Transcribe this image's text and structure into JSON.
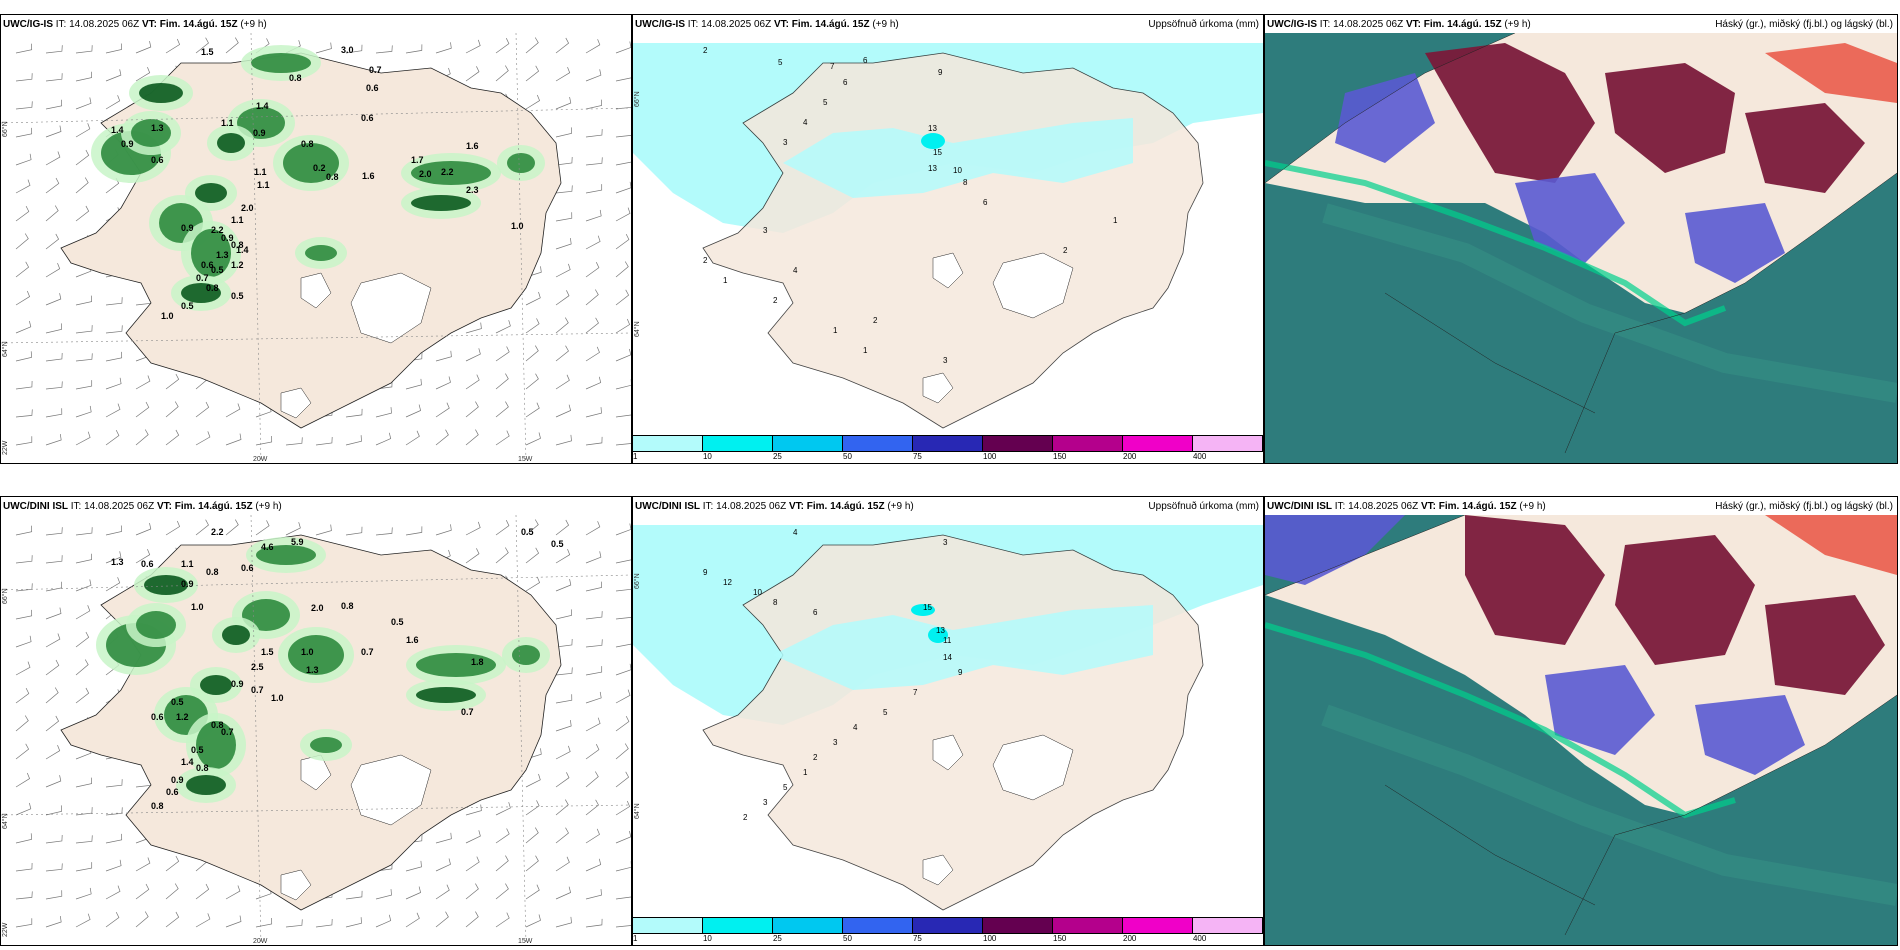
{
  "panels": {
    "top_left": {
      "model": "UWC/IG-IS",
      "it_label": "IT:",
      "it_value": "14.08.2025 06Z",
      "vt_label": "VT:",
      "vt_value": "Fim. 14.ágú. 15Z",
      "lead": "(+9 h)",
      "axis_labels": [
        "66°N",
        "64°N",
        "22W",
        "20W",
        "15W"
      ],
      "values": [
        "1.5",
        "3.0",
        "0.7",
        "0.6",
        "0.8",
        "1.4",
        "0.6",
        "0.9",
        "1.1",
        "1.3",
        "1.4",
        "0.9",
        "0.6",
        "0.8",
        "1.6",
        "0.2",
        "0.8",
        "1.1",
        "1.6",
        "1.7",
        "2.0",
        "2.2",
        "2.3",
        "1.1",
        "2.0",
        "1.1",
        "2.2",
        "0.9",
        "0.8",
        "0.9",
        "1.0",
        "0.6",
        "0.5",
        "0.7",
        "0.8",
        "0.5",
        "0.5",
        "1.0",
        "1.4",
        "1.3",
        "1.2"
      ]
    },
    "top_mid": {
      "model": "UWC/IG-IS",
      "it_label": "IT:",
      "it_value": "14.08.2025 06Z",
      "vt_label": "VT:",
      "vt_value": "Fim. 14.ágú. 15Z",
      "lead": "(+9 h)",
      "field": "Uppsöfnuð úrkoma (mm)",
      "axis_labels": [
        "66°N",
        "64°N"
      ],
      "values": [
        "2",
        "5",
        "7",
        "6",
        "9",
        "6",
        "5",
        "4",
        "3",
        "13",
        "15",
        "13",
        "10",
        "8",
        "6",
        "2",
        "1",
        "3",
        "4",
        "2",
        "1",
        "1",
        "2",
        "3",
        "2",
        "1"
      ]
    },
    "top_right": {
      "model": "UWC/IG-IS",
      "it_label": "IT:",
      "it_value": "14.08.2025 06Z",
      "vt_label": "VT:",
      "vt_value": "Fim. 14.ágú. 15Z",
      "lead": "(+9 h)",
      "field": "Háský (gr.), miðský (fj.bl.) og lágský (bl.)"
    },
    "bottom_left": {
      "model": "UWC/DINI ISL",
      "it_label": "IT:",
      "it_value": "14.08.2025 06Z",
      "vt_label": "VT:",
      "vt_value": "Fim. 14.ágú. 15Z",
      "lead": "(+9 h)",
      "axis_labels": [
        "66°N",
        "64°N",
        "22W",
        "20W",
        "15W"
      ],
      "values": [
        "2.2",
        "4.6",
        "5.9",
        "0.5",
        "0.5",
        "1.3",
        "0.6",
        "1.1",
        "0.8",
        "0.6",
        "0.9",
        "1.0",
        "2.0",
        "0.8",
        "0.5",
        "1.6",
        "0.7",
        "1.8",
        "1.5",
        "1.0",
        "2.5",
        "1.3",
        "0.9",
        "0.7",
        "1.0",
        "0.5",
        "0.6",
        "1.2",
        "0.8",
        "0.7",
        "0.5",
        "1.4",
        "0.8",
        "0.9",
        "0.6",
        "0.8",
        "0.7"
      ]
    },
    "bottom_mid": {
      "model": "UWC/DINI ISL",
      "it_label": "IT:",
      "it_value": "14.08.2025 06Z",
      "vt_label": "VT:",
      "vt_value": "Fim. 14.ágú. 15Z",
      "lead": "(+9 h)",
      "field": "Uppsöfnuð úrkoma (mm)",
      "axis_labels": [
        "66°N",
        "64°N"
      ],
      "values": [
        "4",
        "3",
        "9",
        "12",
        "10",
        "8",
        "6",
        "15",
        "13",
        "11",
        "14",
        "9",
        "7",
        "5",
        "4",
        "3",
        "2",
        "1",
        "5",
        "3",
        "2"
      ]
    },
    "bottom_right": {
      "model": "UWC/DINI ISL",
      "it_label": "IT:",
      "it_value": "14.08.2025 06Z",
      "vt_label": "VT:",
      "vt_value": "Fim. 14.ágú. 15Z",
      "lead": "(+9 h)",
      "field": "Háský (gr.), miðský (fj.bl.) og lágský (bl.)"
    }
  },
  "legend": {
    "ticks": [
      "1",
      "10",
      "25",
      "50",
      "75",
      "100",
      "150",
      "200",
      "400"
    ],
    "colors": [
      "#b3fbfb",
      "#00f0f0",
      "#00c8f0",
      "#3264f0",
      "#2828b4",
      "#640050",
      "#b4008c",
      "#f000c8",
      "#f5b4f5"
    ]
  },
  "colors": {
    "land": "#f5e8dc",
    "sea": "#ffffff",
    "precip_light": "#c8f5c8",
    "precip_heavy": "#0a5a1e",
    "accum_light": "#b3fbfb",
    "cloud_low": "#2e7c7c",
    "cloud_mid": "#5a5ad2",
    "cloud_high": "#7a1a3a"
  }
}
